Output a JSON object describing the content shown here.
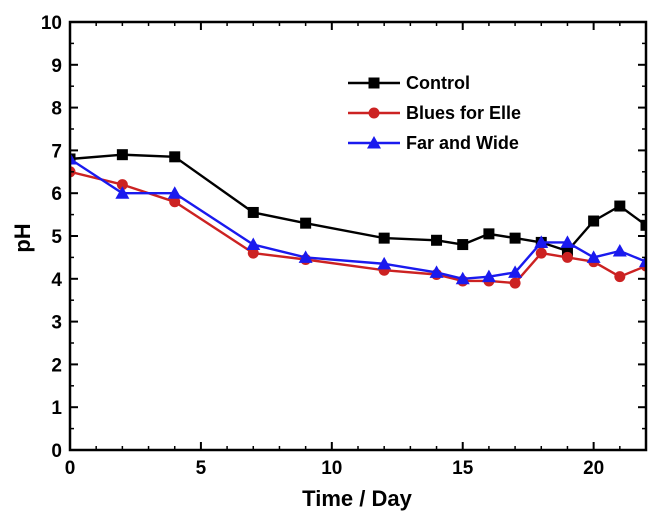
{
  "chart_data": {
    "type": "line",
    "title": "",
    "xlabel": "Time / Day",
    "ylabel": "pH",
    "xlim": [
      0,
      22
    ],
    "ylim": [
      0,
      10
    ],
    "xticks": [
      0,
      5,
      10,
      15,
      20
    ],
    "yticks": [
      0,
      1,
      2,
      3,
      4,
      5,
      6,
      7,
      8,
      9,
      10
    ],
    "grid": false,
    "legend_position": "top-right",
    "series": [
      {
        "name": "Control",
        "color": "#000000",
        "marker": "square",
        "x": [
          0,
          2,
          4,
          7,
          9,
          12,
          14,
          15,
          16,
          17,
          18,
          19,
          20,
          21,
          22
        ],
        "y": [
          6.8,
          6.9,
          6.85,
          5.55,
          5.3,
          4.95,
          4.9,
          4.8,
          5.05,
          4.95,
          4.85,
          4.65,
          5.35,
          5.7,
          5.25
        ]
      },
      {
        "name": "Blues for Elle",
        "color": "#cc2222",
        "marker": "circle",
        "x": [
          0,
          2,
          4,
          7,
          9,
          12,
          14,
          15,
          16,
          17,
          18,
          19,
          20,
          21,
          22
        ],
        "y": [
          6.5,
          6.2,
          5.8,
          4.6,
          4.45,
          4.2,
          4.1,
          3.95,
          3.95,
          3.9,
          4.6,
          4.5,
          4.4,
          4.05,
          4.3
        ]
      },
      {
        "name": "Far and Wide",
        "color": "#1a1aee",
        "marker": "triangle",
        "x": [
          0,
          2,
          4,
          7,
          9,
          12,
          14,
          15,
          16,
          17,
          18,
          19,
          20,
          21,
          22
        ],
        "y": [
          6.8,
          6.0,
          6.0,
          4.8,
          4.5,
          4.35,
          4.15,
          4.0,
          4.05,
          4.15,
          4.85,
          4.85,
          4.5,
          4.65,
          4.4
        ]
      }
    ]
  }
}
